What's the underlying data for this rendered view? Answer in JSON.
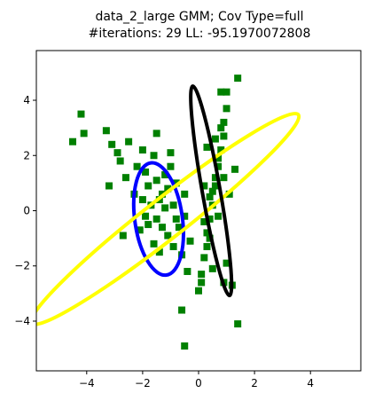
{
  "chart_data": {
    "type": "scatter",
    "title": "data_2_large GMM; Cov Type=full",
    "subtitle": "#iterations: 29 LL: -95.1970072808",
    "xlabel": "",
    "ylabel": "",
    "xlim": [
      -5.8,
      5.8
    ],
    "ylim": [
      -5.8,
      5.8
    ],
    "xticks": [
      -4,
      -2,
      0,
      2,
      4
    ],
    "yticks": [
      -4,
      -2,
      0,
      2,
      4
    ],
    "grid": false,
    "colors": {
      "points": "#008000",
      "ellipse_1": "#0000ff",
      "ellipse_2": "#ffff00",
      "ellipse_3": "#000000"
    },
    "points": [
      [
        -4.5,
        2.5
      ],
      [
        -4.2,
        3.5
      ],
      [
        -4.1,
        2.8
      ],
      [
        -3.3,
        2.9
      ],
      [
        -3.1,
        2.4
      ],
      [
        -3.2,
        0.9
      ],
      [
        -2.8,
        1.8
      ],
      [
        -2.9,
        2.1
      ],
      [
        -2.6,
        1.2
      ],
      [
        -2.5,
        2.5
      ],
      [
        -2.2,
        1.6
      ],
      [
        -2.3,
        0.6
      ],
      [
        -2.0,
        2.2
      ],
      [
        -1.9,
        1.4
      ],
      [
        -1.8,
        0.9
      ],
      [
        -1.6,
        2.0
      ],
      [
        -1.5,
        1.1
      ],
      [
        -1.4,
        0.4
      ],
      [
        -1.2,
        1.3
      ],
      [
        -1.1,
        0.8
      ],
      [
        -1.0,
        2.1
      ],
      [
        -0.9,
        0.2
      ],
      [
        -0.8,
        1.0
      ],
      [
        -0.7,
        -0.6
      ],
      [
        -1.7,
        0.2
      ],
      [
        -1.5,
        -0.3
      ],
      [
        -1.3,
        -0.6
      ],
      [
        -1.1,
        -0.9
      ],
      [
        -0.9,
        -1.3
      ],
      [
        -0.6,
        -1.6
      ],
      [
        -1.9,
        -0.2
      ],
      [
        -2.1,
        -0.7
      ],
      [
        -1.6,
        -1.2
      ],
      [
        -1.4,
        -1.5
      ],
      [
        -1.2,
        0.1
      ],
      [
        -0.5,
        -0.2
      ],
      [
        -2.7,
        -0.9
      ],
      [
        -1.5,
        2.8
      ],
      [
        -1.0,
        1.6
      ],
      [
        -0.5,
        0.6
      ],
      [
        -0.3,
        -1.1
      ],
      [
        -0.4,
        -2.2
      ],
      [
        -0.6,
        -3.6
      ],
      [
        -0.5,
        -4.9
      ],
      [
        -1.8,
        -0.5
      ],
      [
        -1.3,
        0.6
      ],
      [
        -2.0,
        0.4
      ],
      [
        -0.8,
        -0.3
      ],
      [
        0.0,
        -2.9
      ],
      [
        0.1,
        -2.3
      ],
      [
        0.2,
        -1.7
      ],
      [
        0.3,
        -1.3
      ],
      [
        0.3,
        -0.8
      ],
      [
        0.4,
        -0.3
      ],
      [
        0.5,
        0.2
      ],
      [
        0.5,
        0.7
      ],
      [
        0.6,
        1.2
      ],
      [
        0.7,
        1.6
      ],
      [
        0.8,
        2.2
      ],
      [
        0.9,
        2.7
      ],
      [
        0.9,
        3.2
      ],
      [
        1.0,
        3.7
      ],
      [
        1.0,
        4.3
      ],
      [
        1.4,
        4.8
      ],
      [
        0.8,
        4.3
      ],
      [
        0.2,
        -0.4
      ],
      [
        0.4,
        0.5
      ],
      [
        0.6,
        0.9
      ],
      [
        0.7,
        1.9
      ],
      [
        0.8,
        3.0
      ],
      [
        0.1,
        -2.6
      ],
      [
        0.5,
        -2.1
      ],
      [
        0.9,
        -2.6
      ],
      [
        1.0,
        -1.9
      ],
      [
        1.2,
        -2.7
      ],
      [
        0.2,
        0.9
      ],
      [
        1.3,
        1.5
      ],
      [
        1.4,
        -4.1
      ],
      [
        0.9,
        1.2
      ],
      [
        0.3,
        2.3
      ],
      [
        0.6,
        2.6
      ],
      [
        1.1,
        0.6
      ],
      [
        0.4,
        -1.0
      ],
      [
        0.7,
        -0.2
      ]
    ],
    "ellipses": [
      {
        "color_key": "ellipse_1",
        "cx": -1.43,
        "cy": -0.3,
        "rx": 0.85,
        "ry": 2.05,
        "angle": -8
      },
      {
        "color_key": "ellipse_2",
        "cx": -1.2,
        "cy": -0.3,
        "rx": 6.05,
        "ry": 0.72,
        "angle": -38
      },
      {
        "color_key": "ellipse_3",
        "cx": 0.45,
        "cy": 0.72,
        "rx": 0.32,
        "ry": 3.85,
        "angle": -10
      }
    ]
  }
}
